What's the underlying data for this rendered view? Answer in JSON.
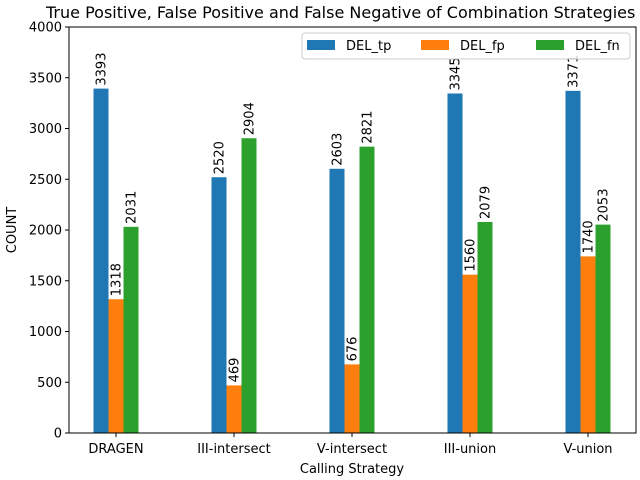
{
  "chart_data": {
    "type": "bar",
    "title": "True Positive, False Positive and False Negative of Combination Strategies",
    "xlabel": "Calling Strategy",
    "ylabel": "COUNT",
    "ylim": [
      0,
      4000
    ],
    "yticks": [
      0,
      500,
      1000,
      1500,
      2000,
      2500,
      3000,
      3500,
      4000
    ],
    "categories": [
      "DRAGEN",
      "III-intersect",
      "V-intersect",
      "III-union",
      "V-union"
    ],
    "series": [
      {
        "name": "DEL_tp",
        "color": "#1f77b4",
        "values": [
          3393,
          2520,
          2603,
          3345,
          3371
        ]
      },
      {
        "name": "DEL_fp",
        "color": "#ff7f0e",
        "values": [
          1318,
          469,
          676,
          1560,
          1740
        ]
      },
      {
        "name": "DEL_fn",
        "color": "#2ca02c",
        "values": [
          2031,
          2904,
          2821,
          2079,
          2053
        ]
      }
    ],
    "legend_position": "top-right",
    "grid": false
  }
}
